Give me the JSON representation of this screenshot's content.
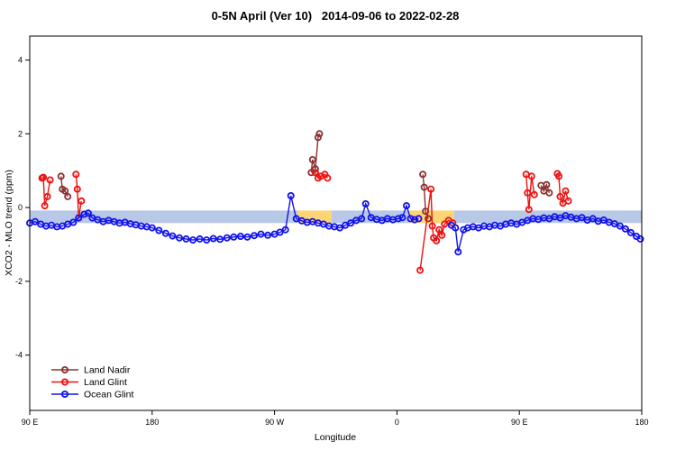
{
  "chart_data": {
    "type": "scatter",
    "title": "0-5N April (Ver 10)   2014-09-06 to 2022-02-28",
    "xlabel": "Longitude",
    "ylabel": "XCO2 - MLO trend (ppm)",
    "xlim": [
      0,
      450
    ],
    "ylim": [
      -5.5,
      4.65
    ],
    "grid": false,
    "legend_position": "bottom-left",
    "x_ticks": [
      {
        "pos": 0,
        "label": "90 E"
      },
      {
        "pos": 90,
        "label": "180"
      },
      {
        "pos": 180,
        "label": "90 W"
      },
      {
        "pos": 270,
        "label": "0"
      },
      {
        "pos": 360,
        "label": "90 E"
      },
      {
        "pos": 450,
        "label": "180"
      }
    ],
    "y_ticks": [
      {
        "pos": -4,
        "label": "-4"
      },
      {
        "pos": -2,
        "label": "-2"
      },
      {
        "pos": 0,
        "label": "0"
      },
      {
        "pos": 2,
        "label": "2"
      },
      {
        "pos": 4,
        "label": "4"
      }
    ],
    "bands": [
      {
        "x_from": 0,
        "x_to": 197,
        "y_top": -0.08,
        "y_bottom": -0.42,
        "color": "#b7c9e6"
      },
      {
        "x_from": 197,
        "x_to": 222,
        "y_top": -0.08,
        "y_bottom": -0.42,
        "color": "#ffd573"
      },
      {
        "x_from": 222,
        "x_to": 279,
        "y_top": -0.08,
        "y_bottom": -0.42,
        "color": "#b7c9e6"
      },
      {
        "x_from": 279,
        "x_to": 312,
        "y_top": -0.08,
        "y_bottom": -0.42,
        "color": "#ffd573"
      },
      {
        "x_from": 312,
        "x_to": 450,
        "y_top": -0.08,
        "y_bottom": -0.42,
        "color": "#b7c9e6"
      }
    ],
    "series": [
      {
        "name": "Land Nadir",
        "color": "#8b3232",
        "segments": [
          [
            [
              23,
              0.85
            ],
            [
              24,
              0.5
            ],
            [
              26,
              0.45
            ],
            [
              28,
              0.3
            ]
          ],
          [
            [
              207,
              0.95
            ],
            [
              208,
              1.3
            ],
            [
              210,
              1.05
            ],
            [
              212,
              1.9
            ],
            [
              213,
              2.0
            ]
          ],
          [
            [
              289,
              0.9
            ],
            [
              290,
              0.55
            ],
            [
              291,
              -0.1
            ],
            [
              293,
              -0.3
            ]
          ],
          [
            [
              376,
              0.6
            ],
            [
              378,
              0.45
            ],
            [
              380,
              0.62
            ],
            [
              382,
              0.4
            ]
          ]
        ]
      },
      {
        "name": "Land Glint",
        "color": "#ee1111",
        "segments": [
          [
            [
              9,
              0.8
            ],
            [
              10,
              0.82
            ],
            [
              11,
              0.05
            ],
            [
              13,
              0.3
            ],
            [
              15,
              0.75
            ]
          ],
          [
            [
              34,
              0.9
            ],
            [
              35,
              0.5
            ],
            [
              36,
              -0.28
            ],
            [
              38,
              0.18
            ]
          ],
          [
            [
              210,
              0.95
            ],
            [
              212,
              0.8
            ],
            [
              214,
              0.85
            ],
            [
              217,
              0.9
            ],
            [
              219,
              0.8
            ]
          ],
          [
            [
              287,
              -1.7
            ],
            [
              295,
              0.5
            ],
            [
              296,
              -0.5
            ],
            [
              297,
              -0.82
            ],
            [
              299,
              -0.9
            ],
            [
              301,
              -0.6
            ],
            [
              303,
              -0.75
            ],
            [
              305,
              -0.45
            ],
            [
              308,
              -0.35
            ],
            [
              311,
              -0.42
            ]
          ],
          [
            [
              365,
              0.9
            ],
            [
              366,
              0.4
            ],
            [
              367,
              -0.05
            ],
            [
              369,
              0.85
            ],
            [
              371,
              0.35
            ]
          ],
          [
            [
              388,
              0.92
            ],
            [
              389,
              0.85
            ],
            [
              390,
              0.3
            ],
            [
              392,
              0.12
            ],
            [
              394,
              0.45
            ],
            [
              396,
              0.18
            ]
          ]
        ]
      },
      {
        "name": "Ocean Glint",
        "color": "#1111ee",
        "segments": [
          [
            [
              0,
              -0.42
            ],
            [
              4,
              -0.38
            ],
            [
              8,
              -0.45
            ],
            [
              12,
              -0.5
            ],
            [
              16,
              -0.48
            ],
            [
              20,
              -0.52
            ],
            [
              24,
              -0.5
            ],
            [
              28,
              -0.45
            ],
            [
              32,
              -0.4
            ],
            [
              36,
              -0.28
            ],
            [
              40,
              -0.18
            ],
            [
              43,
              -0.15
            ],
            [
              46,
              -0.28
            ],
            [
              50,
              -0.33
            ],
            [
              54,
              -0.38
            ],
            [
              58,
              -0.35
            ],
            [
              62,
              -0.38
            ],
            [
              66,
              -0.42
            ],
            [
              70,
              -0.4
            ],
            [
              74,
              -0.44
            ],
            [
              78,
              -0.47
            ],
            [
              82,
              -0.5
            ],
            [
              86,
              -0.52
            ],
            [
              90,
              -0.55
            ],
            [
              95,
              -0.62
            ],
            [
              100,
              -0.7
            ],
            [
              105,
              -0.77
            ],
            [
              110,
              -0.82
            ],
            [
              115,
              -0.85
            ],
            [
              120,
              -0.88
            ],
            [
              125,
              -0.85
            ],
            [
              130,
              -0.88
            ],
            [
              135,
              -0.84
            ],
            [
              140,
              -0.86
            ],
            [
              145,
              -0.82
            ],
            [
              150,
              -0.8
            ],
            [
              155,
              -0.78
            ],
            [
              160,
              -0.8
            ],
            [
              165,
              -0.76
            ],
            [
              170,
              -0.72
            ],
            [
              175,
              -0.75
            ],
            [
              180,
              -0.72
            ],
            [
              184,
              -0.67
            ],
            [
              188,
              -0.6
            ],
            [
              192,
              0.32
            ],
            [
              196,
              -0.3
            ],
            [
              200,
              -0.36
            ],
            [
              204,
              -0.4
            ],
            [
              208,
              -0.38
            ],
            [
              212,
              -0.42
            ],
            [
              216,
              -0.45
            ],
            [
              220,
              -0.5
            ],
            [
              224,
              -0.52
            ],
            [
              228,
              -0.55
            ],
            [
              232,
              -0.48
            ],
            [
              236,
              -0.42
            ],
            [
              240,
              -0.35
            ],
            [
              244,
              -0.3
            ],
            [
              247,
              0.1
            ],
            [
              251,
              -0.27
            ],
            [
              255,
              -0.32
            ],
            [
              259,
              -0.35
            ],
            [
              263,
              -0.3
            ],
            [
              267,
              -0.33
            ],
            [
              271,
              -0.3
            ],
            [
              274,
              -0.27
            ],
            [
              277,
              0.05
            ],
            [
              280,
              -0.3
            ],
            [
              283,
              -0.33
            ],
            [
              286,
              -0.3
            ]
          ],
          [
            [
              310,
              -0.48
            ],
            [
              313,
              -0.55
            ],
            [
              315,
              -1.2
            ],
            [
              319,
              -0.6
            ],
            [
              322,
              -0.55
            ],
            [
              326,
              -0.52
            ],
            [
              330,
              -0.55
            ],
            [
              334,
              -0.5
            ],
            [
              338,
              -0.52
            ],
            [
              342,
              -0.48
            ],
            [
              346,
              -0.5
            ],
            [
              350,
              -0.45
            ],
            [
              354,
              -0.42
            ],
            [
              358,
              -0.45
            ],
            [
              362,
              -0.4
            ],
            [
              366,
              -0.35
            ],
            [
              370,
              -0.3
            ],
            [
              374,
              -0.32
            ],
            [
              378,
              -0.28
            ],
            [
              382,
              -0.3
            ],
            [
              386,
              -0.25
            ],
            [
              390,
              -0.28
            ],
            [
              394,
              -0.22
            ],
            [
              398,
              -0.26
            ],
            [
              402,
              -0.3
            ],
            [
              406,
              -0.27
            ],
            [
              410,
              -0.34
            ],
            [
              414,
              -0.3
            ],
            [
              418,
              -0.37
            ],
            [
              422,
              -0.34
            ],
            [
              426,
              -0.4
            ],
            [
              430,
              -0.44
            ],
            [
              434,
              -0.5
            ],
            [
              438,
              -0.58
            ],
            [
              442,
              -0.68
            ],
            [
              446,
              -0.78
            ],
            [
              449,
              -0.85
            ]
          ]
        ]
      }
    ],
    "legend_entries": [
      "Land Nadir",
      "Land Glint",
      "Ocean Glint"
    ]
  }
}
